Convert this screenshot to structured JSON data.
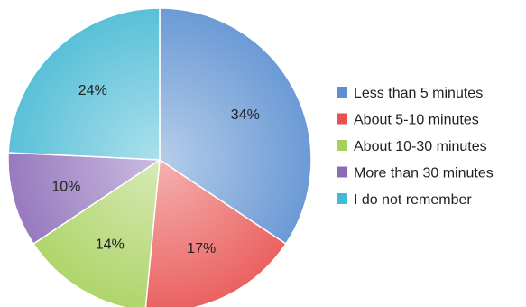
{
  "chart_data": {
    "type": "pie",
    "title": "",
    "legend_position": "right",
    "slices": [
      {
        "label": "Less than 5 minutes",
        "value": 34,
        "value_label": "34%",
        "color": "#5b8fd0"
      },
      {
        "label": "About 5-10 minutes",
        "value": 17,
        "value_label": "17%",
        "color": "#e8514f"
      },
      {
        "label": "About 10-30 minutes",
        "value": 14,
        "value_label": "14%",
        "color": "#a6d05a"
      },
      {
        "label": "More than 30 minutes",
        "value": 10,
        "value_label": "10%",
        "color": "#8b6bb8"
      },
      {
        "label": "I do not remember",
        "value": 24,
        "value_label": "24%",
        "color": "#46b9d4"
      }
    ]
  }
}
